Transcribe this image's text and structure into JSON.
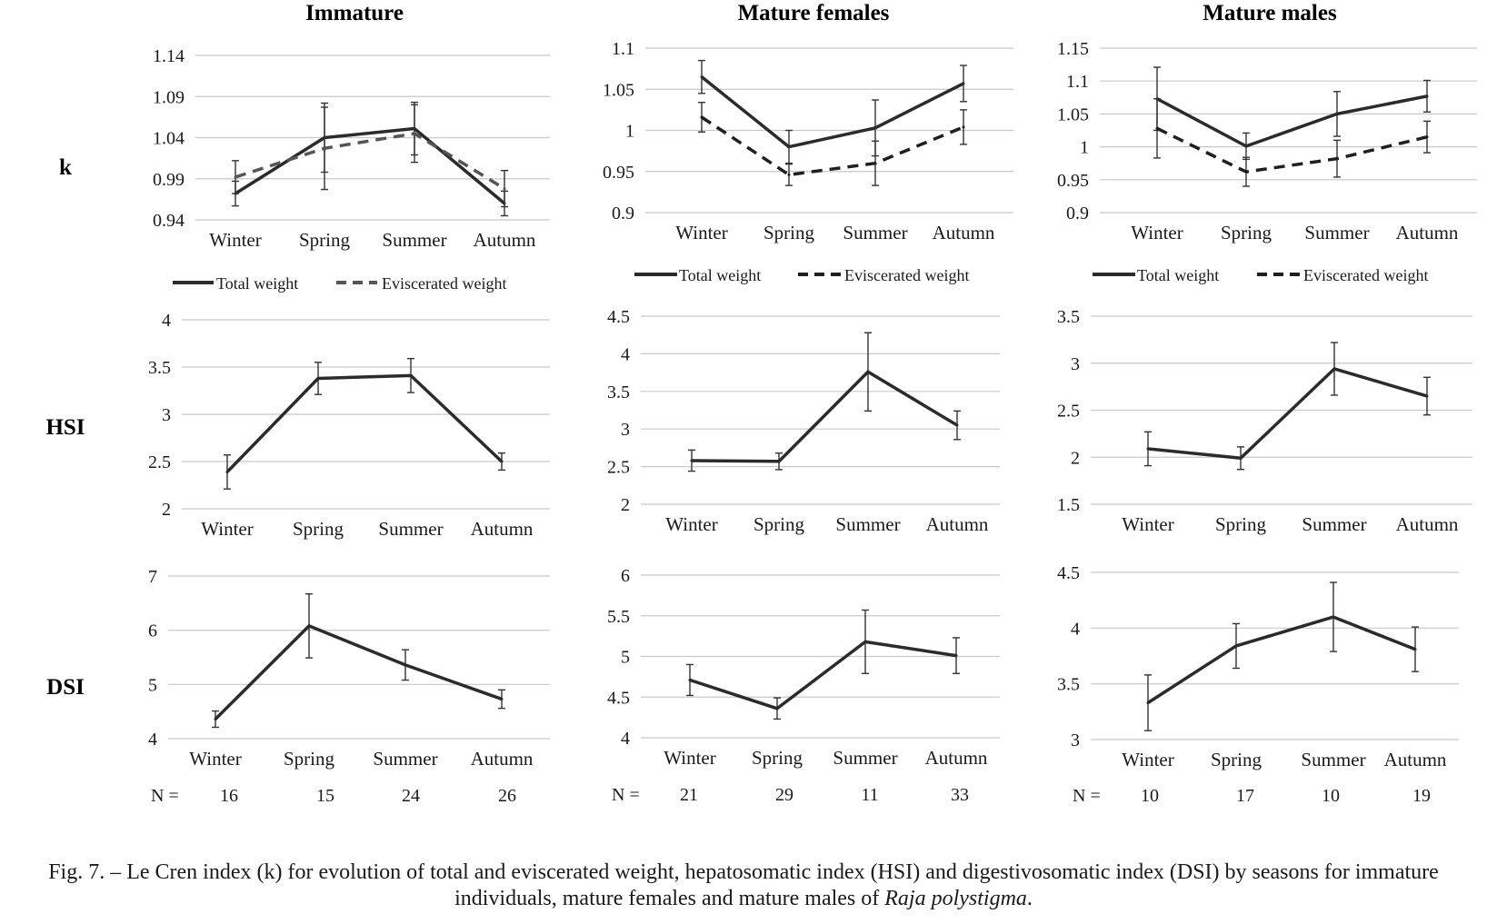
{
  "columns": [
    "Immature",
    "Mature females",
    "Mature males"
  ],
  "rows": [
    "k",
    "HSI",
    "DSI"
  ],
  "seasons": [
    "Winter",
    "Spring",
    "Summer",
    "Autumn"
  ],
  "legend": {
    "total": "Total weight",
    "eviscerated": "Eviscerated weight"
  },
  "n_label": "N =",
  "n_counts": [
    [
      "16",
      "15",
      "24",
      "26"
    ],
    [
      "21",
      "29",
      "11",
      "33"
    ],
    [
      "10",
      "17",
      "10",
      "19"
    ]
  ],
  "caption": {
    "main": "Fig. 7. – Le Cren index (k) for evolution of total and eviscerated weight, hepatosomatic index (HSI) and digestivosomatic index (DSI) by seasons for immature individuals, mature females and mature males of ",
    "species": "Raja polystigma",
    "end": "."
  },
  "colors": {
    "line": "#2b2b2b",
    "dashed": "#555555",
    "grid": "#c8c8c8"
  },
  "chart_data": [
    {
      "type": "line",
      "row": "k",
      "column": "Immature",
      "categories": [
        "Winter",
        "Spring",
        "Summer",
        "Autumn"
      ],
      "ylim": [
        0.94,
        1.14
      ],
      "yticks": [
        "0.94",
        "0.99",
        "1.04",
        "1.09",
        "1.14"
      ],
      "series": [
        {
          "name": "Total weight",
          "style": "solid",
          "values": [
            0.972,
            1.04,
            1.051,
            0.96
          ],
          "err": [
            0.015,
            0.042,
            0.032,
            0.015
          ]
        },
        {
          "name": "Eviscerated weight",
          "style": "dashed",
          "values": [
            0.992,
            1.027,
            1.045,
            0.978
          ],
          "err": [
            0.02,
            0.05,
            0.035,
            0.022
          ]
        }
      ]
    },
    {
      "type": "line",
      "row": "k",
      "column": "Mature females",
      "categories": [
        "Winter",
        "Spring",
        "Summer",
        "Autumn"
      ],
      "ylim": [
        0.9,
        1.1
      ],
      "yticks": [
        "0.9",
        "0.95",
        "1",
        "1.05",
        "1.1"
      ],
      "series": [
        {
          "name": "Total weight",
          "style": "solid",
          "values": [
            1.065,
            0.98,
            1.003,
            1.057
          ],
          "err": [
            0.02,
            0.02,
            0.034,
            0.022
          ]
        },
        {
          "name": "Eviscerated weight",
          "style": "dashed",
          "values": [
            1.016,
            0.946,
            0.96,
            1.004
          ],
          "err": [
            0.018,
            0.013,
            0.027,
            0.021
          ]
        }
      ]
    },
    {
      "type": "line",
      "row": "k",
      "column": "Mature males",
      "categories": [
        "Winter",
        "Spring",
        "Summer",
        "Autumn"
      ],
      "ylim": [
        0.9,
        1.15
      ],
      "yticks": [
        "0.9",
        "0.95",
        "1",
        "1.05",
        "1.1",
        "1.15"
      ],
      "series": [
        {
          "name": "Total weight",
          "style": "solid",
          "values": [
            1.073,
            1.001,
            1.05,
            1.077
          ],
          "err": [
            0.048,
            0.02,
            0.034,
            0.024
          ]
        },
        {
          "name": "Eviscerated weight",
          "style": "dashed",
          "values": [
            1.028,
            0.962,
            0.982,
            1.015
          ],
          "err": [
            0.045,
            0.022,
            0.028,
            0.024
          ]
        }
      ]
    },
    {
      "type": "line",
      "row": "HSI",
      "column": "Immature",
      "categories": [
        "Winter",
        "Spring",
        "Summer",
        "Autumn"
      ],
      "ylim": [
        2,
        4
      ],
      "yticks": [
        "2",
        "2.5",
        "3",
        "3.5",
        "4"
      ],
      "series": [
        {
          "name": "",
          "style": "solid",
          "values": [
            2.39,
            3.38,
            3.41,
            2.5
          ],
          "err": [
            0.18,
            0.17,
            0.18,
            0.09
          ]
        }
      ]
    },
    {
      "type": "line",
      "row": "HSI",
      "column": "Mature females",
      "categories": [
        "Winter",
        "Spring",
        "Summer",
        "Autumn"
      ],
      "ylim": [
        2,
        4.5
      ],
      "yticks": [
        "2",
        "2.5",
        "3",
        "3.5",
        "4",
        "4.5"
      ],
      "series": [
        {
          "name": "",
          "style": "solid",
          "values": [
            2.58,
            2.57,
            3.76,
            3.05
          ],
          "err": [
            0.14,
            0.11,
            0.52,
            0.19
          ]
        }
      ]
    },
    {
      "type": "line",
      "row": "HSI",
      "column": "Mature males",
      "categories": [
        "Winter",
        "Spring",
        "Summer",
        "Autumn"
      ],
      "ylim": [
        1.5,
        3.5
      ],
      "yticks": [
        "1.5",
        "2",
        "2.5",
        "3",
        "3.5"
      ],
      "series": [
        {
          "name": "",
          "style": "solid",
          "values": [
            2.09,
            1.99,
            2.94,
            2.65
          ],
          "err": [
            0.18,
            0.12,
            0.28,
            0.2
          ]
        }
      ]
    },
    {
      "type": "line",
      "row": "DSI",
      "column": "Immature",
      "categories": [
        "Winter",
        "Spring",
        "Summer",
        "Autumn"
      ],
      "ylim": [
        4,
        7
      ],
      "yticks": [
        "4",
        "5",
        "6",
        "7"
      ],
      "series": [
        {
          "name": "",
          "style": "solid",
          "values": [
            4.36,
            6.08,
            5.36,
            4.73
          ],
          "err": [
            0.15,
            0.59,
            0.28,
            0.17
          ]
        }
      ]
    },
    {
      "type": "line",
      "row": "DSI",
      "column": "Mature females",
      "categories": [
        "Winter",
        "Spring",
        "Summer",
        "Autumn"
      ],
      "ylim": [
        4,
        6
      ],
      "yticks": [
        "4",
        "4.5",
        "5",
        "5.5",
        "6"
      ],
      "series": [
        {
          "name": "",
          "style": "solid",
          "values": [
            4.71,
            4.36,
            5.18,
            5.01
          ],
          "err": [
            0.19,
            0.13,
            0.39,
            0.22
          ]
        }
      ]
    },
    {
      "type": "line",
      "row": "DSI",
      "column": "Mature males",
      "categories": [
        "Winter",
        "Spring",
        "Summer",
        "Autumn"
      ],
      "ylim": [
        3,
        4.5
      ],
      "yticks": [
        "3",
        "3.5",
        "4",
        "4.5"
      ],
      "series": [
        {
          "name": "",
          "style": "solid",
          "values": [
            3.33,
            3.84,
            4.1,
            3.81
          ],
          "err": [
            0.25,
            0.2,
            0.31,
            0.2
          ]
        }
      ]
    }
  ]
}
